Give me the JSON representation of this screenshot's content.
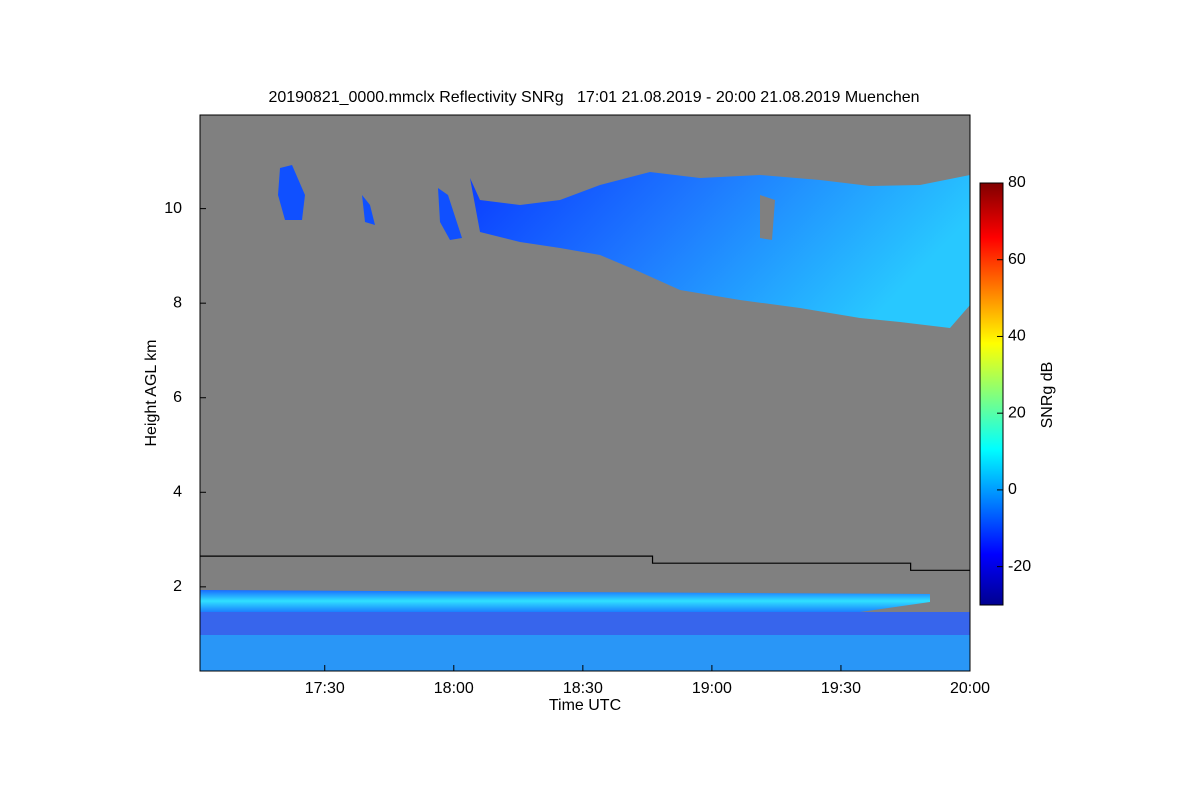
{
  "chart_data": {
    "type": "heatmap",
    "title": "20190821_0000.mmclx Reflectivity SNRg   17:01 21.08.2019 - 20:00 21.08.2019 Muenchen",
    "xlabel": "Time UTC",
    "ylabel": "Height AGL km",
    "xlim": [
      17.0167,
      20.0
    ],
    "xticks": [
      {
        "value": 17.5,
        "label": "17:30"
      },
      {
        "value": 18.0,
        "label": "18:00"
      },
      {
        "value": 18.5,
        "label": "18:30"
      },
      {
        "value": 19.0,
        "label": "19:00"
      },
      {
        "value": 19.5,
        "label": "19:30"
      },
      {
        "value": 20.0,
        "label": "20:00"
      }
    ],
    "ylim": [
      0.22,
      11.98
    ],
    "yticks": [
      2,
      4,
      6,
      8,
      10
    ],
    "colorbar": {
      "label": "SNRg dB",
      "lim": [
        -30,
        80
      ],
      "ticks": [
        -20,
        0,
        20,
        40,
        60,
        80
      ]
    },
    "line": {
      "x": [
        17.0167,
        18.77,
        18.77,
        19.77,
        19.77,
        20.0
      ],
      "y": [
        2.65,
        2.65,
        2.5,
        2.5,
        2.35,
        2.35
      ],
      "color": "#000000"
    }
  }
}
